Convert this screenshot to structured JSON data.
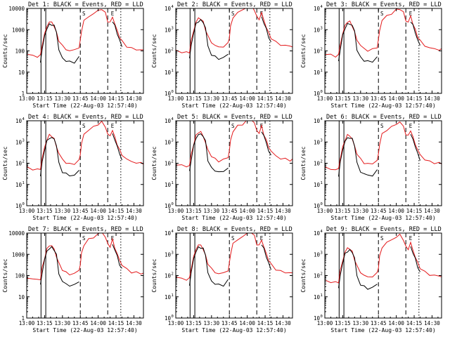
{
  "figure": {
    "title_format": "Det {n}: BLACK = Events, RED = LLD",
    "xlabel": "Start Time (22-Aug-03 12:57:40)",
    "ylabel": "Counts/sec",
    "colors": {
      "events": "#000000",
      "lld": "#e41a1c",
      "background": "#ffffff"
    }
  },
  "chart_data": {
    "type": "line",
    "layout": "3x3 grid of detector panels",
    "x_unit": "minutes after 13:00 UT",
    "xlim": [
      0,
      98
    ],
    "x_ticks": [
      {
        "value": 0,
        "label": "13:00"
      },
      {
        "value": 15,
        "label": "13:15"
      },
      {
        "value": 30,
        "label": "13:30"
      },
      {
        "value": 45,
        "label": "13:45"
      },
      {
        "value": 60,
        "label": "14:00"
      },
      {
        "value": 75,
        "label": "14:15"
      },
      {
        "value": 90,
        "label": "14:30"
      }
    ],
    "xlabel": "Start Time (22-Aug-03 12:57:40)",
    "ylabel": "Counts/sec",
    "y_scale": "log",
    "ylim": [
      1,
      10000
    ],
    "y_tick_styles": {
      "plain": [
        "1",
        "10",
        "100",
        "1000",
        "10000"
      ],
      "power": [
        "10",
        "10",
        "10",
        "10",
        "10"
      ]
    },
    "y_tick_exponents": [
      "0",
      "1",
      "2",
      "3",
      "4"
    ],
    "markers": {
      "solid": [
        12,
        16
      ],
      "dashed": [
        45,
        68
      ],
      "dotted": [
        79
      ]
    },
    "marker_letters": [
      {
        "x": 48,
        "label": "S"
      },
      {
        "x": 72,
        "label": "E"
      }
    ],
    "series_legend": [
      {
        "name": "Events",
        "color": "BLACK"
      },
      {
        "name": "LLD",
        "color": "RED"
      }
    ],
    "base_curves": {
      "x": [
        0,
        5,
        9,
        11.5,
        13,
        15,
        17,
        19,
        21,
        23,
        25,
        27,
        30,
        33,
        36,
        40,
        44,
        45,
        46,
        48,
        52,
        56,
        60,
        63,
        66,
        68,
        70,
        72,
        74,
        76,
        78,
        80,
        84,
        88,
        92,
        96,
        98
      ],
      "lld": [
        70,
        60,
        55,
        60,
        200,
        600,
        1500,
        2300,
        2200,
        1500,
        700,
        320,
        170,
        120,
        100,
        110,
        150,
        300,
        900,
        2500,
        4300,
        5500,
        8000,
        9500,
        6000,
        2600,
        2100,
        4200,
        1800,
        900,
        450,
        280,
        170,
        130,
        120,
        110,
        110
      ],
      "events": [
        null,
        null,
        null,
        30,
        120,
        500,
        1200,
        1700,
        1800,
        1500,
        800,
        110,
        45,
        35,
        30,
        30,
        50,
        null,
        null,
        null,
        null,
        null,
        null,
        null,
        null,
        null,
        null,
        2500,
        1500,
        700,
        300,
        170,
        null,
        null,
        null,
        null,
        null
      ]
    },
    "panels": [
      {
        "det": "1",
        "y_style": "plain",
        "scale": 1.0
      },
      {
        "det": "2",
        "y_style": "power",
        "scale": 1.5
      },
      {
        "det": "3",
        "y_style": "power",
        "scale": 1.05
      },
      {
        "det": "4",
        "y_style": "power",
        "scale": 0.9
      },
      {
        "det": "5",
        "y_style": "power",
        "scale": 1.3
      },
      {
        "det": "6",
        "y_style": "power",
        "scale": 0.9
      },
      {
        "det": "7",
        "y_style": "plain",
        "scale": 1.15
      },
      {
        "det": "8",
        "y_style": "power",
        "scale": 1.2
      },
      {
        "det": "9",
        "y_style": "power",
        "scale": 0.85
      }
    ]
  }
}
